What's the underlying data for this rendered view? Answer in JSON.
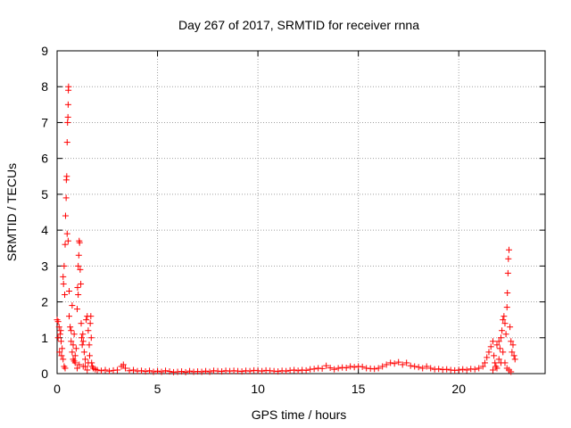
{
  "chart_data": {
    "type": "scatter",
    "title": "Day 267 of 2017, SRMTID for receiver rnna",
    "xlabel": "GPS time / hours",
    "ylabel": "SRMTID / TECUs",
    "xlim": [
      0,
      24.3
    ],
    "ylim": [
      0,
      9
    ],
    "xticks": [
      0,
      5,
      10,
      15,
      20
    ],
    "yticks": [
      0,
      1,
      2,
      3,
      4,
      5,
      6,
      7,
      8,
      9
    ],
    "grid": true,
    "marker": "+",
    "color": "#ff0000",
    "series": [
      {
        "name": "SRMTID",
        "points": [
          [
            0.0,
            1.5
          ],
          [
            0.05,
            1.45
          ],
          [
            0.1,
            1.3
          ],
          [
            0.15,
            1.1
          ],
          [
            0.2,
            0.9
          ],
          [
            0.25,
            0.7
          ],
          [
            0.3,
            0.4
          ],
          [
            0.35,
            0.2
          ],
          [
            0.4,
            0.15
          ],
          [
            0.05,
            1.0
          ],
          [
            0.12,
            0.6
          ],
          [
            0.18,
            1.2
          ],
          [
            0.22,
            0.5
          ],
          [
            0.3,
            2.7
          ],
          [
            0.32,
            2.5
          ],
          [
            0.35,
            3.0
          ],
          [
            0.38,
            2.2
          ],
          [
            0.4,
            3.6
          ],
          [
            0.42,
            4.4
          ],
          [
            0.45,
            4.9
          ],
          [
            0.46,
            5.4
          ],
          [
            0.48,
            5.5
          ],
          [
            0.5,
            6.45
          ],
          [
            0.52,
            7.0
          ],
          [
            0.54,
            7.15
          ],
          [
            0.55,
            7.5
          ],
          [
            0.56,
            7.9
          ],
          [
            0.57,
            8.0
          ],
          [
            0.5,
            3.9
          ],
          [
            0.55,
            3.7
          ],
          [
            0.6,
            2.3
          ],
          [
            0.6,
            1.6
          ],
          [
            0.65,
            1.3
          ],
          [
            0.7,
            0.9
          ],
          [
            0.75,
            0.6
          ],
          [
            0.8,
            0.4
          ],
          [
            0.85,
            0.35
          ],
          [
            0.7,
            1.2
          ],
          [
            0.75,
            1.9
          ],
          [
            0.8,
            0.8
          ],
          [
            0.85,
            1.1
          ],
          [
            0.9,
            0.5
          ],
          [
            0.95,
            0.7
          ],
          [
            1.0,
            1.8
          ],
          [
            1.02,
            2.4
          ],
          [
            1.05,
            2.2
          ],
          [
            1.05,
            3.0
          ],
          [
            1.08,
            3.3
          ],
          [
            1.1,
            3.7
          ],
          [
            1.12,
            3.65
          ],
          [
            1.15,
            2.9
          ],
          [
            1.18,
            2.5
          ],
          [
            1.2,
            1.4
          ],
          [
            1.22,
            1.0
          ],
          [
            1.25,
            0.8
          ],
          [
            1.28,
            1.1
          ],
          [
            1.3,
            0.9
          ],
          [
            1.35,
            0.6
          ],
          [
            1.4,
            0.4
          ],
          [
            1.45,
            1.5
          ],
          [
            1.5,
            1.6
          ],
          [
            1.55,
            1.2
          ],
          [
            1.6,
            0.8
          ],
          [
            1.62,
            0.5
          ],
          [
            1.65,
            1.4
          ],
          [
            1.68,
            1.6
          ],
          [
            1.7,
            1.0
          ],
          [
            1.72,
            0.3
          ],
          [
            1.75,
            0.2
          ],
          [
            1.8,
            0.15
          ],
          [
            0.9,
            0.3
          ],
          [
            1.0,
            0.15
          ],
          [
            1.1,
            0.25
          ],
          [
            1.3,
            0.2
          ],
          [
            1.4,
            0.2
          ],
          [
            1.5,
            0.1
          ],
          [
            1.55,
            0.3
          ],
          [
            1.9,
            0.12
          ],
          [
            2.0,
            0.1
          ],
          [
            2.2,
            0.08
          ],
          [
            2.4,
            0.1
          ],
          [
            2.6,
            0.07
          ],
          [
            2.8,
            0.09
          ],
          [
            3.0,
            0.1
          ],
          [
            3.2,
            0.2
          ],
          [
            3.3,
            0.25
          ],
          [
            3.4,
            0.15
          ],
          [
            3.6,
            0.08
          ],
          [
            3.8,
            0.1
          ],
          [
            4.0,
            0.07
          ],
          [
            4.2,
            0.08
          ],
          [
            4.4,
            0.06
          ],
          [
            4.6,
            0.08
          ],
          [
            4.8,
            0.05
          ],
          [
            5.0,
            0.07
          ],
          [
            5.2,
            0.05
          ],
          [
            5.4,
            0.08
          ],
          [
            5.6,
            0.06
          ],
          [
            5.8,
            0.04
          ],
          [
            6.0,
            0.05
          ],
          [
            6.2,
            0.06
          ],
          [
            6.4,
            0.04
          ],
          [
            6.6,
            0.07
          ],
          [
            6.8,
            0.05
          ],
          [
            7.0,
            0.06
          ],
          [
            7.2,
            0.05
          ],
          [
            7.4,
            0.07
          ],
          [
            7.6,
            0.05
          ],
          [
            7.8,
            0.08
          ],
          [
            8.0,
            0.07
          ],
          [
            8.2,
            0.06
          ],
          [
            8.4,
            0.08
          ],
          [
            8.6,
            0.07
          ],
          [
            8.8,
            0.08
          ],
          [
            9.0,
            0.07
          ],
          [
            9.2,
            0.06
          ],
          [
            9.4,
            0.08
          ],
          [
            9.6,
            0.07
          ],
          [
            9.8,
            0.09
          ],
          [
            10.0,
            0.08
          ],
          [
            10.2,
            0.07
          ],
          [
            10.4,
            0.09
          ],
          [
            10.6,
            0.08
          ],
          [
            10.8,
            0.07
          ],
          [
            11.0,
            0.06
          ],
          [
            11.2,
            0.08
          ],
          [
            11.4,
            0.07
          ],
          [
            11.6,
            0.09
          ],
          [
            11.8,
            0.1
          ],
          [
            12.0,
            0.08
          ],
          [
            12.2,
            0.1
          ],
          [
            12.4,
            0.09
          ],
          [
            12.6,
            0.12
          ],
          [
            12.8,
            0.13
          ],
          [
            13.0,
            0.15
          ],
          [
            13.2,
            0.14
          ],
          [
            13.4,
            0.22
          ],
          [
            13.6,
            0.16
          ],
          [
            13.8,
            0.12
          ],
          [
            14.0,
            0.15
          ],
          [
            14.2,
            0.17
          ],
          [
            14.4,
            0.16
          ],
          [
            14.6,
            0.2
          ],
          [
            14.8,
            0.18
          ],
          [
            15.0,
            0.2
          ],
          [
            15.2,
            0.19
          ],
          [
            15.4,
            0.15
          ],
          [
            15.6,
            0.14
          ],
          [
            15.8,
            0.13
          ],
          [
            16.0,
            0.15
          ],
          [
            16.2,
            0.2
          ],
          [
            16.4,
            0.25
          ],
          [
            16.6,
            0.3
          ],
          [
            16.8,
            0.28
          ],
          [
            17.0,
            0.32
          ],
          [
            17.2,
            0.25
          ],
          [
            17.4,
            0.3
          ],
          [
            17.6,
            0.22
          ],
          [
            17.8,
            0.2
          ],
          [
            18.0,
            0.18
          ],
          [
            18.2,
            0.15
          ],
          [
            18.4,
            0.2
          ],
          [
            18.6,
            0.15
          ],
          [
            18.8,
            0.12
          ],
          [
            19.0,
            0.13
          ],
          [
            19.2,
            0.11
          ],
          [
            19.4,
            0.12
          ],
          [
            19.6,
            0.1
          ],
          [
            19.8,
            0.09
          ],
          [
            20.0,
            0.1
          ],
          [
            20.2,
            0.12
          ],
          [
            20.4,
            0.1
          ],
          [
            20.6,
            0.13
          ],
          [
            20.8,
            0.12
          ],
          [
            21.0,
            0.15
          ],
          [
            21.2,
            0.2
          ],
          [
            21.3,
            0.3
          ],
          [
            21.4,
            0.45
          ],
          [
            21.5,
            0.6
          ],
          [
            21.6,
            0.75
          ],
          [
            21.7,
            0.9
          ],
          [
            21.75,
            0.5
          ],
          [
            21.8,
            0.3
          ],
          [
            21.85,
            0.2
          ],
          [
            21.9,
            0.15
          ],
          [
            22.0,
            0.4
          ],
          [
            22.05,
            0.7
          ],
          [
            22.1,
            1.0
          ],
          [
            22.15,
            1.2
          ],
          [
            22.2,
            1.5
          ],
          [
            22.25,
            1.6
          ],
          [
            22.3,
            1.4
          ],
          [
            22.35,
            1.1
          ],
          [
            22.4,
            1.85
          ],
          [
            22.42,
            2.25
          ],
          [
            22.45,
            2.8
          ],
          [
            22.47,
            3.2
          ],
          [
            22.5,
            3.45
          ],
          [
            22.55,
            1.3
          ],
          [
            22.6,
            0.9
          ],
          [
            22.65,
            0.6
          ],
          [
            22.7,
            0.8
          ],
          [
            22.75,
            0.5
          ],
          [
            22.8,
            0.4
          ],
          [
            22.3,
            0.3
          ],
          [
            22.4,
            0.15
          ],
          [
            22.5,
            0.1
          ],
          [
            22.6,
            0.05
          ],
          [
            22.2,
            0.6
          ],
          [
            22.1,
            0.3
          ],
          [
            21.7,
            0.1
          ],
          [
            21.9,
            0.8
          ],
          [
            22.0,
            0.9
          ]
        ]
      }
    ]
  }
}
